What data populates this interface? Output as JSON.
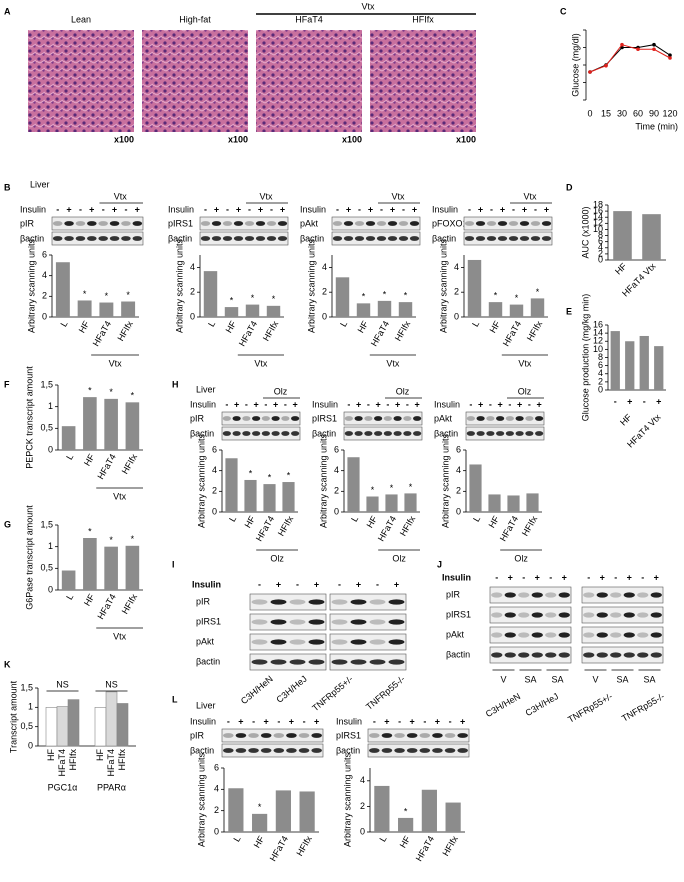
{
  "figure": {
    "A": {
      "letter": "A",
      "group": "Vtx",
      "images": [
        {
          "label": "Lean",
          "magnification": "x100"
        },
        {
          "label": "High-fat",
          "magnification": "x100"
        },
        {
          "label": "HFaT4",
          "magnification": "x100"
        },
        {
          "label": "HFIfx",
          "magnification": "x100"
        }
      ]
    },
    "B": {
      "letter": "B",
      "tissue": "Liver",
      "panels": [
        {
          "blot": {
            "treatment": "Insulin",
            "lanes": [
              "-",
              "+",
              "-",
              "+",
              "-",
              "+",
              "-",
              "+"
            ],
            "group": "Vtx",
            "bands": [
              "pIR",
              "βactin"
            ]
          },
          "chart": {
            "type": "bar",
            "ylabel": "Arbitrary scanning units",
            "categories": [
              "L",
              "HF",
              "HFaT4",
              "HFIfx"
            ],
            "values": [
              5.3,
              1.6,
              1.4,
              1.5
            ],
            "significance": [
              null,
              "*",
              "*",
              "*"
            ],
            "group": "Vtx",
            "ylim": [
              0,
              6
            ],
            "yticks": [
              0,
              2,
              4,
              6
            ],
            "color": "#8c8c8c"
          }
        },
        {
          "blot": {
            "treatment": "Insulin",
            "lanes": [
              "-",
              "+",
              "-",
              "+",
              "-",
              "+",
              "-",
              "+"
            ],
            "group": "Vtx",
            "bands": [
              "pIRS1",
              "βactin"
            ]
          },
          "chart": {
            "type": "bar",
            "ylabel": "Arbitrary scanning units",
            "categories": [
              "L",
              "HF",
              "HFaT4",
              "HFIfx"
            ],
            "values": [
              3.7,
              0.8,
              1.0,
              0.9
            ],
            "significance": [
              null,
              "*",
              "*",
              "*"
            ],
            "group": "Vtx",
            "ylim": [
              0,
              5
            ],
            "yticks": [
              0,
              2,
              4
            ],
            "color": "#8c8c8c"
          }
        },
        {
          "blot": {
            "treatment": "Insulin",
            "lanes": [
              "-",
              "+",
              "-",
              "+",
              "-",
              "+",
              "-",
              "+"
            ],
            "group": "Vtx",
            "bands": [
              "pAkt",
              "βactin"
            ]
          },
          "chart": {
            "type": "bar",
            "ylabel": "Arbitrary scanning units",
            "categories": [
              "L",
              "HF",
              "HFaT4",
              "HFIfx"
            ],
            "values": [
              3.2,
              1.1,
              1.3,
              1.2
            ],
            "significance": [
              null,
              "*",
              "*",
              "*"
            ],
            "group": "Vtx",
            "ylim": [
              0,
              5
            ],
            "yticks": [
              0,
              2,
              4
            ],
            "color": "#8c8c8c"
          }
        },
        {
          "blot": {
            "treatment": "Insulin",
            "lanes": [
              "-",
              "+",
              "-",
              "+",
              "-",
              "+",
              "-",
              "+"
            ],
            "group": "Vtx",
            "bands": [
              "pFOXO1",
              "βactin"
            ]
          },
          "chart": {
            "type": "bar",
            "ylabel": "Arbitrary scanning units",
            "categories": [
              "L",
              "HF",
              "HFaT4",
              "HFIfx"
            ],
            "values": [
              4.6,
              1.2,
              1.0,
              1.5
            ],
            "significance": [
              null,
              "*",
              "*",
              "*"
            ],
            "group": "Vtx",
            "ylim": [
              0,
              5
            ],
            "yticks": [
              0,
              2,
              4
            ],
            "color": "#8c8c8c"
          }
        }
      ]
    },
    "C": {
      "letter": "C",
      "type": "line",
      "ylabel": "Glucose (mg/dl)",
      "xlabel": "Time (min)",
      "categories": [
        0,
        15,
        30,
        60,
        90,
        120
      ],
      "series": [
        {
          "color": "#000000",
          "values": [
            80,
            100,
            150,
            150,
            158,
            128
          ]
        },
        {
          "color": "#e0201b",
          "values": [
            80,
            98,
            158,
            145,
            145,
            120
          ]
        }
      ],
      "ylim": [
        0,
        200
      ],
      "yticks": [
        0,
        50,
        100,
        150,
        200
      ]
    },
    "D": {
      "letter": "D",
      "type": "bar",
      "ylabel": "AUC (x1000)",
      "categories": [
        "HF",
        "HFaT4 Vtx"
      ],
      "values": [
        16,
        15
      ],
      "ylim": [
        0,
        18
      ],
      "yticks": [
        0,
        2,
        4,
        6,
        8,
        10,
        12,
        14,
        16,
        18
      ],
      "color": "#8c8c8c"
    },
    "E": {
      "letter": "E",
      "type": "bar",
      "ylabel": "Glucose production (mg/kg min)",
      "categories": [
        "-",
        "+",
        "-",
        "+"
      ],
      "groups": [
        "HF",
        "HFaT4 Vtx"
      ],
      "values": [
        14.5,
        12,
        13.3,
        10.8
      ],
      "ylim": [
        0,
        16
      ],
      "yticks": [
        0,
        2,
        4,
        6,
        8,
        10,
        12,
        14,
        16
      ],
      "color": "#8c8c8c"
    },
    "F": {
      "letter": "F",
      "type": "bar",
      "ylabel": "PEPCK transcript amount",
      "categories": [
        "L",
        "HF",
        "HFaT4",
        "HFIfx"
      ],
      "values": [
        0.55,
        1.22,
        1.18,
        1.1
      ],
      "significance": [
        null,
        "*",
        "*",
        "*"
      ],
      "group": "Vtx",
      "ylim": [
        0,
        1.5
      ],
      "yticks": [
        0,
        {
          "value": 0.5,
          "label": "0,5"
        },
        1,
        {
          "value": 1.5,
          "label": "1,5"
        }
      ],
      "color": "#8c8c8c"
    },
    "G": {
      "letter": "G",
      "type": "bar",
      "ylabel": "G6Pase transcript amount",
      "categories": [
        "L",
        "HF",
        "HFaT4",
        "HFIfx"
      ],
      "values": [
        0.45,
        1.2,
        1.0,
        1.02
      ],
      "significance": [
        null,
        "*",
        "*",
        "*"
      ],
      "group": "Vtx",
      "ylim": [
        0,
        1.5
      ],
      "yticks": [
        0,
        {
          "value": 0.5,
          "label": "0,5"
        },
        1,
        {
          "value": 1.5,
          "label": "1,5"
        }
      ],
      "color": "#8c8c8c"
    },
    "H": {
      "letter": "H",
      "tissue": "Liver",
      "panels": [
        {
          "blot": {
            "treatment": "Insulin",
            "lanes": [
              "-",
              "+",
              "-",
              "+",
              "-",
              "+",
              "-",
              "+"
            ],
            "group": "Olz",
            "bands": [
              "pIR",
              "βactin"
            ]
          },
          "chart": {
            "type": "bar",
            "ylabel": "Arbitrary scanning units",
            "categories": [
              "L",
              "HF",
              "HFaT4",
              "HFIfx"
            ],
            "values": [
              5.2,
              3.1,
              2.7,
              2.9
            ],
            "significance": [
              null,
              "*",
              "*",
              "*"
            ],
            "group": "Olz",
            "ylim": [
              0,
              6
            ],
            "yticks": [
              0,
              2,
              4,
              6
            ],
            "color": "#8c8c8c"
          }
        },
        {
          "blot": {
            "treatment": "Insulin",
            "lanes": [
              "-",
              "+",
              "-",
              "+",
              "-",
              "+",
              "-",
              "+"
            ],
            "group": "Olz",
            "bands": [
              "pIRS1",
              "βactin"
            ]
          },
          "chart": {
            "type": "bar",
            "ylabel": "Arbitrary scanning units",
            "categories": [
              "L",
              "HF",
              "HFaT4",
              "HFIfx"
            ],
            "values": [
              5.3,
              1.5,
              1.7,
              1.8
            ],
            "significance": [
              null,
              "*",
              "*",
              "*"
            ],
            "group": "Olz",
            "ylim": [
              0,
              6
            ],
            "yticks": [
              0,
              2,
              4,
              6
            ],
            "color": "#8c8c8c"
          }
        },
        {
          "blot": {
            "treatment": "Insulin",
            "lanes": [
              "-",
              "+",
              "-",
              "+",
              "-",
              "+",
              "-",
              "+"
            ],
            "group": "Olz",
            "bands": [
              "pAkt",
              "βactin"
            ]
          },
          "chart": {
            "type": "bar",
            "ylabel": "Arbitrary scanning units",
            "categories": [
              "L",
              "HF",
              "HFaT4",
              "HFIfx"
            ],
            "values": [
              4.6,
              1.7,
              1.6,
              1.8
            ],
            "group": "Olz",
            "ylim": [
              0,
              6
            ],
            "yticks": [
              0,
              2,
              4,
              6
            ],
            "color": "#8c8c8c"
          }
        }
      ]
    },
    "I": {
      "letter": "I",
      "treatment": "Insulin",
      "lanes": [
        "-",
        "+",
        "-",
        "+",
        "-",
        "+",
        "-",
        "+"
      ],
      "bands": [
        "pIR",
        "pIRS1",
        "pAkt",
        "βactin"
      ],
      "strains": [
        "C3H/HeN",
        "C3H/HeJ",
        "TNFRp55+/-",
        "TNFRp55-/-"
      ]
    },
    "J": {
      "letter": "J",
      "treatment": "Insulin",
      "lanes": [
        "-",
        "+",
        "-",
        "+",
        "-",
        "+",
        "-",
        "+",
        "-",
        "+",
        "-",
        "+"
      ],
      "bands": [
        "pIR",
        "pIRS1",
        "pAkt",
        "βactin"
      ],
      "conditions": [
        "V",
        "SA",
        "SA",
        "V",
        "SA",
        "SA"
      ],
      "strains": [
        "C3H/HeN",
        "C3H/HeJ",
        "TNFRp55+/-",
        "TNFRp55-/-"
      ]
    },
    "K": {
      "letter": "K",
      "type": "grouped-bar",
      "ylabel": "Transcript amount",
      "categories": [
        "HF",
        "HFaT4",
        "HFIfx"
      ],
      "colors": [
        "#ffffff",
        "#d9d9d9",
        "#8c8c8c"
      ],
      "groups": [
        {
          "name": "PGC1α",
          "annotation": "NS",
          "values": [
            1.0,
            1.02,
            1.2
          ]
        },
        {
          "name": "PPARα",
          "annotation": "NS",
          "values": [
            1.0,
            1.4,
            1.1
          ]
        }
      ],
      "ylim": [
        0,
        1.5
      ],
      "yticks": [
        0,
        {
          "value": 0.5,
          "label": "0,5"
        },
        1,
        {
          "value": 1.5,
          "label": "1,5"
        }
      ]
    },
    "L": {
      "letter": "L",
      "tissue": "Liver",
      "panels": [
        {
          "blot": {
            "treatment": "Insulin",
            "lanes": [
              "-",
              "+",
              "-",
              "+",
              "-",
              "+",
              "-",
              "+"
            ],
            "bands": [
              "pIR",
              "βactin"
            ]
          },
          "chart": {
            "type": "bar",
            "ylabel": "Arbitrary scanning units",
            "categories": [
              "L",
              "HF",
              "HFaT4",
              "HFIfx"
            ],
            "values": [
              4.1,
              1.7,
              3.9,
              3.8
            ],
            "significance": [
              null,
              "*",
              null,
              null
            ],
            "ylim": [
              0,
              6
            ],
            "yticks": [
              0,
              2,
              4,
              6
            ],
            "color": "#8c8c8c"
          }
        },
        {
          "blot": {
            "treatment": "Insulin",
            "lanes": [
              "-",
              "+",
              "-",
              "+",
              "-",
              "+",
              "-",
              "+"
            ],
            "bands": [
              "pIRS1",
              "βactin"
            ]
          },
          "chart": {
            "type": "bar",
            "ylabel": "Arbitrary scanning units",
            "categories": [
              "L",
              "HF",
              "HFaT4",
              "HFIfx"
            ],
            "values": [
              3.6,
              1.1,
              3.3,
              2.3
            ],
            "significance": [
              null,
              "*",
              null,
              null
            ],
            "ylim": [
              0,
              5
            ],
            "yticks": [
              0,
              2,
              4
            ],
            "color": "#8c8c8c"
          }
        }
      ]
    }
  }
}
